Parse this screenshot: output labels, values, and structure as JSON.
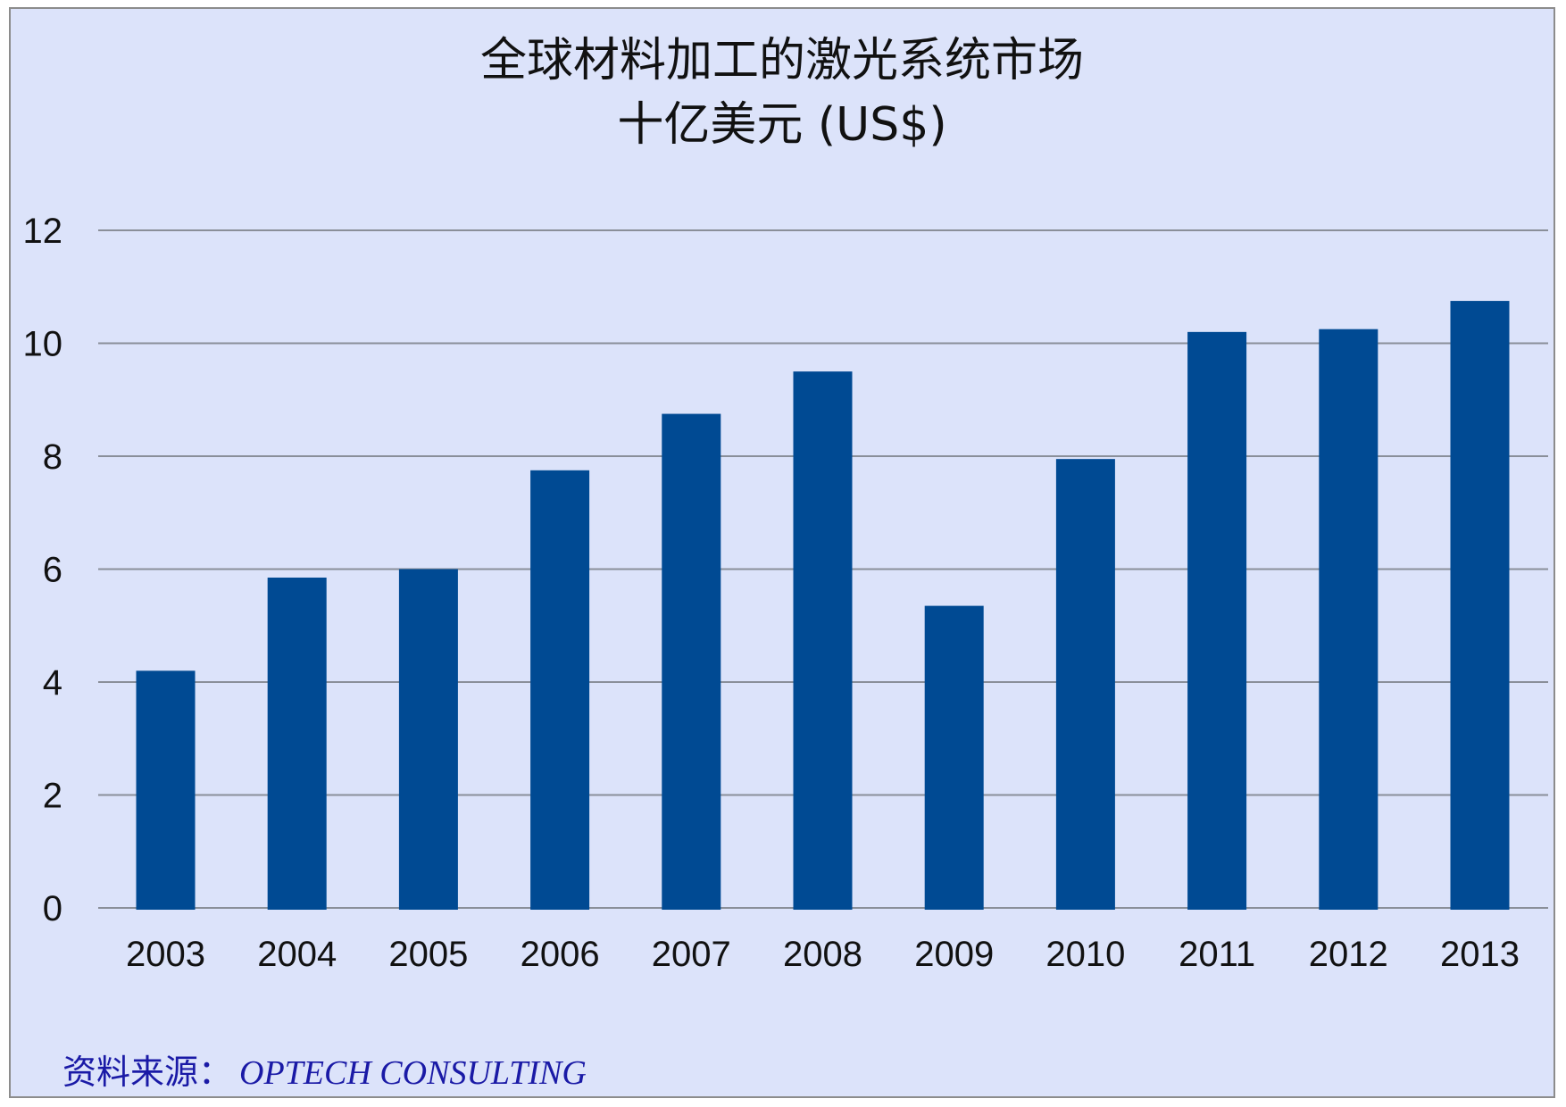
{
  "chart_data": {
    "type": "bar",
    "title": "全球材料加工的激光系统市场",
    "subtitle": "十亿美元 (US$)",
    "categories": [
      "2003",
      "2004",
      "2005",
      "2006",
      "2007",
      "2008",
      "2009",
      "2010",
      "2011",
      "2012",
      "2013"
    ],
    "values": [
      4.2,
      5.85,
      6.0,
      7.75,
      8.75,
      9.5,
      5.35,
      7.95,
      10.2,
      10.25,
      10.75
    ],
    "ylim": [
      0,
      12
    ],
    "yticks": [
      "0",
      "2",
      "4",
      "6",
      "8",
      "10",
      "12"
    ],
    "xlabel": "",
    "ylabel": "",
    "grid": true,
    "legend": "none",
    "bar_color": "#004a93",
    "background_color": "#dce3fa",
    "gridline_color": "#8a8f99"
  },
  "source": {
    "label": "资料来源：",
    "name": "OPTECH CONSULTING"
  }
}
